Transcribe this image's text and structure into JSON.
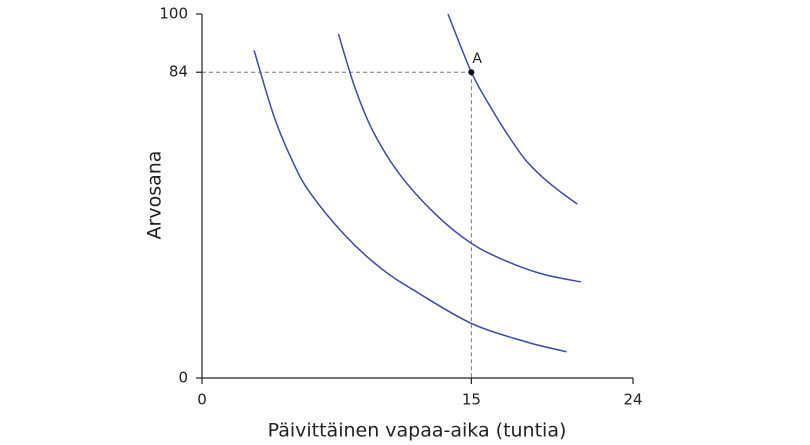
{
  "chart_data": {
    "type": "line",
    "xlabel": "Päivittäinen vapaa-aika (tuntia)",
    "ylabel": "Arvosana",
    "xlim": [
      0,
      24
    ],
    "ylim": [
      0,
      100
    ],
    "xticks": [
      0,
      15,
      24
    ],
    "yticks": [
      0,
      84,
      100
    ],
    "series": [
      {
        "color": "#3a4ba8",
        "x": [
          2.9,
          4,
          5,
          6,
          8,
          10,
          12,
          15,
          18,
          20.3
        ],
        "values": [
          90,
          72,
          60,
          51,
          39,
          30,
          23.5,
          15,
          10,
          7.2
        ]
      },
      {
        "color": "#3a4ba8",
        "x": [
          7.6,
          8.5,
          9.5,
          11,
          13,
          15,
          17,
          19,
          21.1
        ],
        "values": [
          94.5,
          80,
          68,
          56,
          45,
          37,
          32,
          28.5,
          26.4
        ]
      },
      {
        "color": "#3a4ba8",
        "x": [
          13.7,
          15,
          16,
          17,
          18,
          19,
          20,
          20.9
        ],
        "values": [
          100,
          84,
          75,
          67,
          60,
          55,
          51,
          47.8
        ]
      }
    ],
    "point": {
      "label": "A",
      "x": 15,
      "y": 84
    }
  }
}
